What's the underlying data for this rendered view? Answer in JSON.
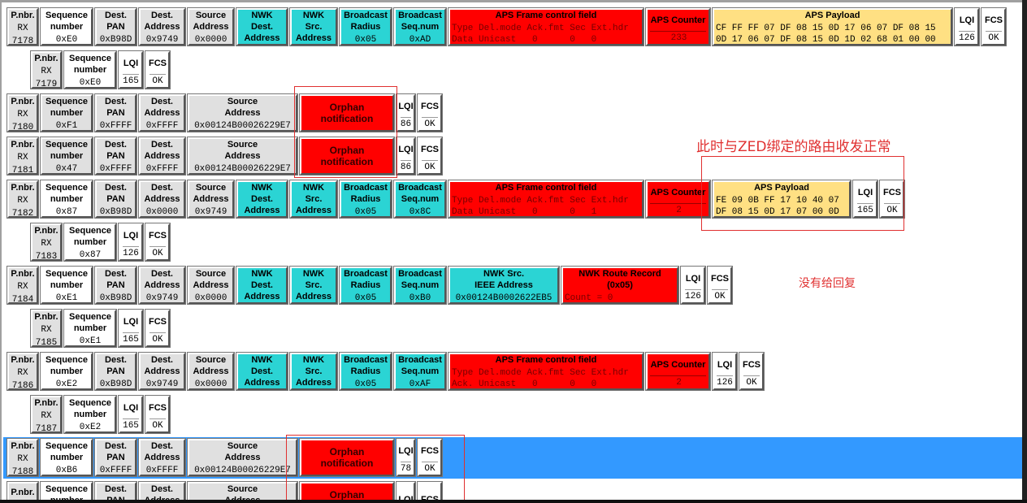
{
  "rows": [
    {
      "type": "full",
      "cells": [
        {
          "k": "pnbr",
          "h": [
            "P.nbr."
          ],
          "v": [
            "RX",
            "7178"
          ]
        },
        {
          "k": "seq",
          "h": [
            "Sequence",
            "number"
          ],
          "v": [
            "0xE0"
          ]
        },
        {
          "k": "dpan",
          "h": [
            "Dest.",
            "PAN"
          ],
          "v": [
            "0xB98D"
          ]
        },
        {
          "k": "daddr",
          "h": [
            "Dest.",
            "Address"
          ],
          "v": [
            "0x9749"
          ]
        },
        {
          "k": "saddr",
          "h": [
            "Source",
            "Address"
          ],
          "v": [
            "0x0000"
          ]
        },
        {
          "k": "nwkd",
          "h": [
            "NWK Dest.",
            "Address"
          ],
          "v": [
            "0x9749"
          ]
        },
        {
          "k": "nwks",
          "h": [
            "NWK Src.",
            "Address"
          ],
          "v": [
            "0x0000"
          ]
        },
        {
          "k": "brad",
          "h": [
            "Broadcast",
            "Radius"
          ],
          "v": [
            "0x05"
          ]
        },
        {
          "k": "bseq",
          "h": [
            "Broadcast",
            "Seq.num"
          ],
          "v": [
            "0xAD"
          ]
        },
        {
          "k": "fcf",
          "h": [
            "APS Frame control field"
          ],
          "v": [
            "Type Del.mode Ack.fmt Sec Ext.hdr",
            "Data Unicast   0      0   0"
          ]
        },
        {
          "k": "cnt",
          "h": [
            "APS Counter"
          ],
          "v": [
            "233"
          ]
        },
        {
          "k": "pay14",
          "h": [
            "APS Payload"
          ],
          "v": [
            "CF FF FF 07 DF 08 15 0D 17 06 07 DF 08 15",
            "0D 17 06 07 DF 08 15 0D 1D 02 68 01 00 00"
          ]
        },
        {
          "k": "lqi",
          "h": [
            "LQI"
          ],
          "v": [
            "126"
          ]
        },
        {
          "k": "fcs",
          "h": [
            "FCS"
          ],
          "v": [
            "OK"
          ]
        }
      ]
    },
    {
      "type": "short",
      "cells": [
        {
          "k": "pnbr",
          "h": [
            "P.nbr."
          ],
          "v": [
            "RX",
            "7179"
          ]
        },
        {
          "k": "seq",
          "h": [
            "Sequence",
            "number"
          ],
          "v": [
            "0xE0"
          ]
        },
        {
          "k": "lqi",
          "h": [
            "LQI"
          ],
          "v": [
            "165"
          ]
        },
        {
          "k": "fcs",
          "h": [
            "FCS"
          ],
          "v": [
            "OK"
          ]
        }
      ]
    },
    {
      "type": "orphan",
      "cells": [
        {
          "k": "pnbr",
          "h": [
            "P.nbr."
          ],
          "v": [
            "RX",
            "7180"
          ]
        },
        {
          "k": "seqg",
          "h": [
            "Sequence",
            "number"
          ],
          "v": [
            "0xF1"
          ]
        },
        {
          "k": "dpan",
          "h": [
            "Dest.",
            "PAN"
          ],
          "v": [
            "0xFFFF"
          ]
        },
        {
          "k": "daddr",
          "h": [
            "Dest.",
            "Address"
          ],
          "v": [
            "0xFFFF"
          ]
        },
        {
          "k": "sext",
          "h": [
            "Source",
            "Address"
          ],
          "v": [
            "0x00124B00026229E7"
          ]
        },
        {
          "k": "orph",
          "h": [
            "Orphan notification"
          ],
          "v": []
        },
        {
          "k": "lqis",
          "h": [
            "LQI"
          ],
          "v": [
            "86"
          ]
        },
        {
          "k": "fcs",
          "h": [
            "FCS"
          ],
          "v": [
            "OK"
          ]
        }
      ]
    },
    {
      "type": "orphan",
      "cells": [
        {
          "k": "pnbr",
          "h": [
            "P.nbr."
          ],
          "v": [
            "RX",
            "7181"
          ]
        },
        {
          "k": "seqg",
          "h": [
            "Sequence",
            "number"
          ],
          "v": [
            "0x47"
          ]
        },
        {
          "k": "dpan",
          "h": [
            "Dest.",
            "PAN"
          ],
          "v": [
            "0xFFFF"
          ]
        },
        {
          "k": "daddr",
          "h": [
            "Dest.",
            "Address"
          ],
          "v": [
            "0xFFFF"
          ]
        },
        {
          "k": "sext",
          "h": [
            "Source",
            "Address"
          ],
          "v": [
            "0x00124B00026229E7"
          ]
        },
        {
          "k": "orph",
          "h": [
            "Orphan notification"
          ],
          "v": []
        },
        {
          "k": "lqis",
          "h": [
            "LQI"
          ],
          "v": [
            "86"
          ]
        },
        {
          "k": "fcs",
          "h": [
            "FCS"
          ],
          "v": [
            "OK"
          ]
        }
      ]
    },
    {
      "type": "full",
      "cells": [
        {
          "k": "pnbr",
          "h": [
            "P.nbr."
          ],
          "v": [
            "RX",
            "7182"
          ]
        },
        {
          "k": "seq",
          "h": [
            "Sequence",
            "number"
          ],
          "v": [
            "0x87"
          ]
        },
        {
          "k": "dpan",
          "h": [
            "Dest.",
            "PAN"
          ],
          "v": [
            "0xB98D"
          ]
        },
        {
          "k": "daddr",
          "h": [
            "Dest.",
            "Address"
          ],
          "v": [
            "0x0000"
          ]
        },
        {
          "k": "saddr",
          "h": [
            "Source",
            "Address"
          ],
          "v": [
            "0x9749"
          ]
        },
        {
          "k": "nwkd",
          "h": [
            "NWK Dest.",
            "Address"
          ],
          "v": [
            "0x0000"
          ]
        },
        {
          "k": "nwks",
          "h": [
            "NWK Src.",
            "Address"
          ],
          "v": [
            "0x9749"
          ]
        },
        {
          "k": "brad",
          "h": [
            "Broadcast",
            "Radius"
          ],
          "v": [
            "0x05"
          ]
        },
        {
          "k": "bseq",
          "h": [
            "Broadcast",
            "Seq.num"
          ],
          "v": [
            "0x8C"
          ]
        },
        {
          "k": "fcf",
          "h": [
            "APS Frame control field"
          ],
          "v": [
            "Type Del.mode Ack.fmt Sec Ext.hdr",
            "Data Unicast   0      0   1"
          ]
        },
        {
          "k": "cnt",
          "h": [
            "APS Counter"
          ],
          "v": [
            "2"
          ]
        },
        {
          "k": "pay8",
          "h": [
            "APS Payload"
          ],
          "v": [
            "FE 09 0B FF 17 10 40 07",
            "DF 08 15 0D 17 07 00 0D"
          ]
        },
        {
          "k": "lqi",
          "h": [
            "LQI"
          ],
          "v": [
            "165"
          ]
        },
        {
          "k": "fcs",
          "h": [
            "FCS"
          ],
          "v": [
            "OK"
          ]
        }
      ]
    },
    {
      "type": "short",
      "cells": [
        {
          "k": "pnbr",
          "h": [
            "P.nbr."
          ],
          "v": [
            "RX",
            "7183"
          ]
        },
        {
          "k": "seq",
          "h": [
            "Sequence",
            "number"
          ],
          "v": [
            "0x87"
          ]
        },
        {
          "k": "lqi",
          "h": [
            "LQI"
          ],
          "v": [
            "126"
          ]
        },
        {
          "k": "fcs",
          "h": [
            "FCS"
          ],
          "v": [
            "OK"
          ]
        }
      ]
    },
    {
      "type": "full",
      "cells": [
        {
          "k": "pnbr",
          "h": [
            "P.nbr."
          ],
          "v": [
            "RX",
            "7184"
          ]
        },
        {
          "k": "seq",
          "h": [
            "Sequence",
            "number"
          ],
          "v": [
            "0xE1"
          ]
        },
        {
          "k": "dpan",
          "h": [
            "Dest.",
            "PAN"
          ],
          "v": [
            "0xB98D"
          ]
        },
        {
          "k": "daddr",
          "h": [
            "Dest.",
            "Address"
          ],
          "v": [
            "0x9749"
          ]
        },
        {
          "k": "saddr",
          "h": [
            "Source",
            "Address"
          ],
          "v": [
            "0x0000"
          ]
        },
        {
          "k": "nwkd",
          "h": [
            "NWK Dest.",
            "Address"
          ],
          "v": [
            "0x9749"
          ]
        },
        {
          "k": "nwks",
          "h": [
            "NWK Src.",
            "Address"
          ],
          "v": [
            "0x0000"
          ]
        },
        {
          "k": "brad",
          "h": [
            "Broadcast",
            "Radius"
          ],
          "v": [
            "0x05"
          ]
        },
        {
          "k": "bseq",
          "h": [
            "Broadcast",
            "Seq.num"
          ],
          "v": [
            "0xB0"
          ]
        },
        {
          "k": "ieee",
          "h": [
            "NWK Src.",
            "IEEE Address"
          ],
          "v": [
            "0x00124B0002622EB5"
          ]
        },
        {
          "k": "route",
          "h": [
            "NWK Route Record (0x05)"
          ],
          "v": [
            "Count = 0"
          ]
        },
        {
          "k": "lqi",
          "h": [
            "LQI"
          ],
          "v": [
            "126"
          ]
        },
        {
          "k": "fcs",
          "h": [
            "FCS"
          ],
          "v": [
            "OK"
          ]
        }
      ]
    },
    {
      "type": "short",
      "cells": [
        {
          "k": "pnbr",
          "h": [
            "P.nbr."
          ],
          "v": [
            "RX",
            "7185"
          ]
        },
        {
          "k": "seq",
          "h": [
            "Sequence",
            "number"
          ],
          "v": [
            "0xE1"
          ]
        },
        {
          "k": "lqi",
          "h": [
            "LQI"
          ],
          "v": [
            "165"
          ]
        },
        {
          "k": "fcs",
          "h": [
            "FCS"
          ],
          "v": [
            "OK"
          ]
        }
      ]
    },
    {
      "type": "full",
      "cells": [
        {
          "k": "pnbr",
          "h": [
            "P.nbr."
          ],
          "v": [
            "RX",
            "7186"
          ]
        },
        {
          "k": "seq",
          "h": [
            "Sequence",
            "number"
          ],
          "v": [
            "0xE2"
          ]
        },
        {
          "k": "dpan",
          "h": [
            "Dest.",
            "PAN"
          ],
          "v": [
            "0xB98D"
          ]
        },
        {
          "k": "daddr",
          "h": [
            "Dest.",
            "Address"
          ],
          "v": [
            "0x9749"
          ]
        },
        {
          "k": "saddr",
          "h": [
            "Source",
            "Address"
          ],
          "v": [
            "0x0000"
          ]
        },
        {
          "k": "nwkd",
          "h": [
            "NWK Dest.",
            "Address"
          ],
          "v": [
            "0x9749"
          ]
        },
        {
          "k": "nwks",
          "h": [
            "NWK Src.",
            "Address"
          ],
          "v": [
            "0x0000"
          ]
        },
        {
          "k": "brad",
          "h": [
            "Broadcast",
            "Radius"
          ],
          "v": [
            "0x05"
          ]
        },
        {
          "k": "bseq",
          "h": [
            "Broadcast",
            "Seq.num"
          ],
          "v": [
            "0xAF"
          ]
        },
        {
          "k": "fcf",
          "h": [
            "APS Frame control field"
          ],
          "v": [
            "Type Del.mode Ack.fmt Sec Ext.hdr",
            "Ack. Unicast   0      0   0"
          ]
        },
        {
          "k": "cnt",
          "h": [
            "APS Counter"
          ],
          "v": [
            "2"
          ]
        },
        {
          "k": "lqi",
          "h": [
            "LQI"
          ],
          "v": [
            "126"
          ]
        },
        {
          "k": "fcs",
          "h": [
            "FCS"
          ],
          "v": [
            "OK"
          ]
        }
      ]
    },
    {
      "type": "short",
      "cells": [
        {
          "k": "pnbr",
          "h": [
            "P.nbr."
          ],
          "v": [
            "RX",
            "7187"
          ]
        },
        {
          "k": "seq",
          "h": [
            "Sequence",
            "number"
          ],
          "v": [
            "0xE2"
          ]
        },
        {
          "k": "lqi",
          "h": [
            "LQI"
          ],
          "v": [
            "165"
          ]
        },
        {
          "k": "fcs",
          "h": [
            "FCS"
          ],
          "v": [
            "OK"
          ]
        }
      ]
    },
    {
      "type": "orphan",
      "selected": true,
      "cells": [
        {
          "k": "pnbr",
          "h": [
            "P.nbr."
          ],
          "v": [
            "RX",
            "7188"
          ]
        },
        {
          "k": "seq",
          "h": [
            "Sequence",
            "number"
          ],
          "v": [
            "0xB6"
          ]
        },
        {
          "k": "dpan",
          "h": [
            "Dest.",
            "PAN"
          ],
          "v": [
            "0xFFFF"
          ]
        },
        {
          "k": "daddr",
          "h": [
            "Dest.",
            "Address"
          ],
          "v": [
            "0xFFFF"
          ]
        },
        {
          "k": "sext",
          "h": [
            "Source",
            "Address"
          ],
          "v": [
            "0x00124B00026229E7"
          ]
        },
        {
          "k": "orph",
          "h": [
            "Orphan notification"
          ],
          "v": []
        },
        {
          "k": "lqis",
          "h": [
            "LQI"
          ],
          "v": [
            "78"
          ]
        },
        {
          "k": "fcs",
          "h": [
            "FCS"
          ],
          "v": [
            "OK"
          ]
        }
      ]
    },
    {
      "type": "orphan",
      "cells": [
        {
          "k": "pnbr",
          "h": [
            "P.nbr."
          ],
          "v": [
            "RX"
          ]
        },
        {
          "k": "seq",
          "h": [
            "Sequence",
            "number"
          ],
          "v": []
        },
        {
          "k": "dpan",
          "h": [
            "Dest.",
            "PAN"
          ],
          "v": []
        },
        {
          "k": "daddr",
          "h": [
            "Dest.",
            "Address"
          ],
          "v": []
        },
        {
          "k": "sext",
          "h": [
            "Source",
            "Address"
          ],
          "v": []
        },
        {
          "k": "orph",
          "h": [
            "Orphan notification"
          ],
          "v": []
        },
        {
          "k": "lqis",
          "h": [
            "LQI"
          ],
          "v": []
        },
        {
          "k": "fcs",
          "h": [
            "FCS"
          ],
          "v": []
        }
      ]
    }
  ],
  "annotations": {
    "zed_binding_note": "此时与ZED绑定的路由收发正常",
    "no_reply_note": "没有给回复",
    "color": "#e03030"
  },
  "colors": {
    "mac": "#e0e0e0",
    "nwk": "#2bd4d4",
    "aps": "#ff0000",
    "payload": "#ffe083",
    "selected": "#3399ff"
  }
}
